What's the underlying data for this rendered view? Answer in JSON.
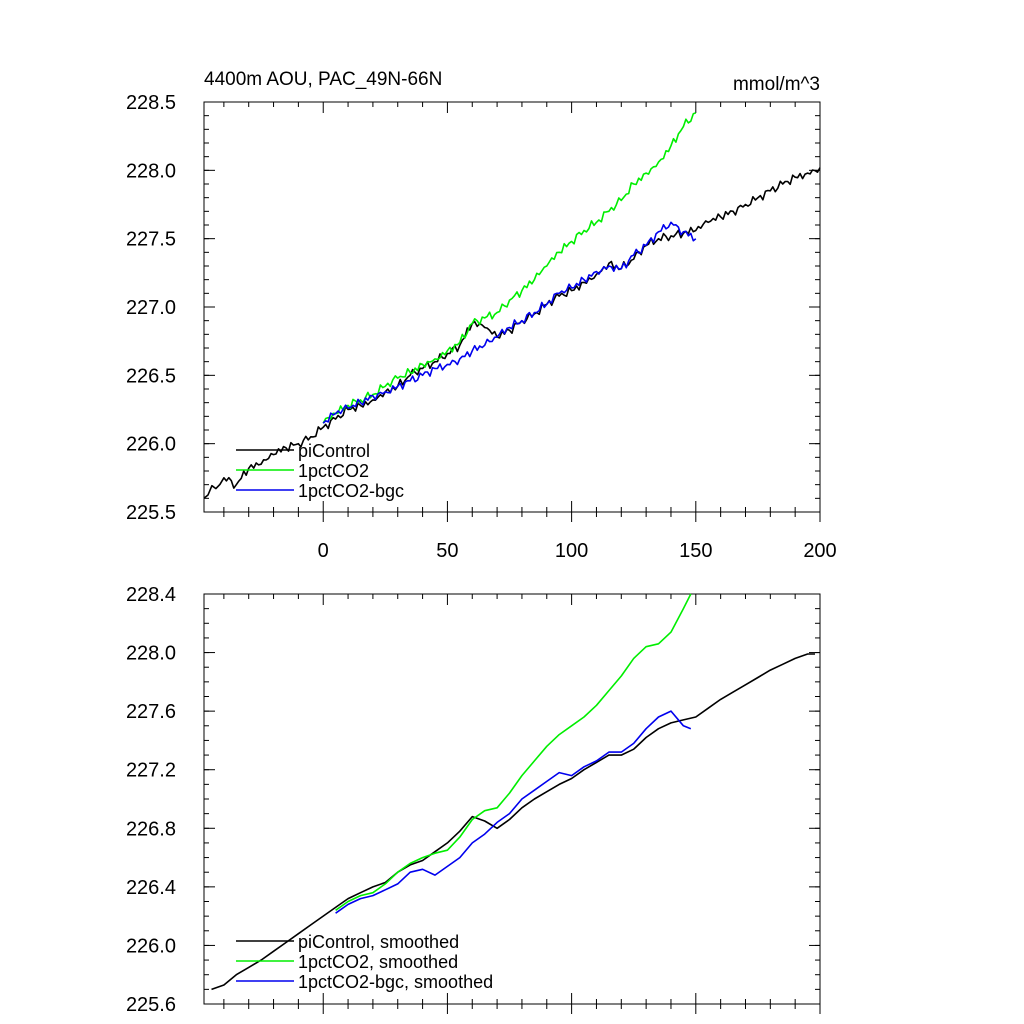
{
  "header": {
    "title": "4400m AOU, PAC_49N-66N",
    "units": "mmol/m^3"
  },
  "colors": {
    "piControl": "#000000",
    "1pctCO2": "#00ee00",
    "1pctCO2-bgc": "#0000ee"
  },
  "chart_data": [
    {
      "type": "line",
      "title": "",
      "xlabel": "",
      "ylabel": "",
      "xlim": [
        -48,
        200
      ],
      "ylim": [
        225.5,
        228.5
      ],
      "xticks": [
        0,
        50,
        100,
        150,
        200
      ],
      "xtick_labels": [
        "0",
        "50",
        "100",
        "150",
        "200"
      ],
      "yticks": [
        225.5,
        226.0,
        226.5,
        227.0,
        227.5,
        228.0,
        228.5
      ],
      "ytick_labels": [
        "225.5",
        "226.0",
        "226.5",
        "227.0",
        "227.5",
        "228.0",
        "228.5"
      ],
      "legend_position": "bottom-left",
      "series": [
        {
          "name": "piControl",
          "x": [
            -48,
            -40,
            -35,
            -30,
            -25,
            -20,
            -15,
            -10,
            -5,
            0,
            5,
            10,
            15,
            20,
            25,
            30,
            35,
            40,
            45,
            50,
            55,
            60,
            65,
            70,
            75,
            80,
            85,
            90,
            95,
            100,
            105,
            110,
            115,
            120,
            125,
            130,
            135,
            140,
            145,
            150,
            155,
            160,
            165,
            170,
            175,
            180,
            185,
            190,
            195,
            200
          ],
          "y": [
            225.6,
            225.75,
            225.7,
            225.82,
            225.85,
            225.92,
            225.97,
            226.0,
            226.05,
            226.12,
            226.18,
            226.25,
            226.28,
            226.32,
            226.38,
            226.42,
            226.5,
            226.55,
            226.6,
            226.66,
            226.72,
            226.88,
            226.85,
            226.78,
            226.83,
            226.9,
            226.95,
            227.02,
            227.08,
            227.12,
            227.18,
            227.24,
            227.32,
            227.28,
            227.35,
            227.45,
            227.5,
            227.52,
            227.54,
            227.56,
            227.62,
            227.66,
            227.7,
            227.75,
            227.8,
            227.85,
            227.9,
            227.95,
            227.98,
            228.02
          ]
        },
        {
          "name": "1pctCO2",
          "x": [
            0,
            5,
            10,
            15,
            20,
            25,
            30,
            35,
            40,
            45,
            50,
            55,
            60,
            65,
            70,
            75,
            80,
            85,
            90,
            95,
            100,
            105,
            110,
            115,
            120,
            125,
            130,
            135,
            140,
            145,
            150
          ],
          "y": [
            226.15,
            226.22,
            226.28,
            226.32,
            226.36,
            226.42,
            226.48,
            226.52,
            226.58,
            226.62,
            226.68,
            226.74,
            226.88,
            226.92,
            226.96,
            227.05,
            227.12,
            227.2,
            227.3,
            227.4,
            227.48,
            227.56,
            227.62,
            227.7,
            227.78,
            227.9,
            227.98,
            228.06,
            228.18,
            228.32,
            228.42
          ]
        },
        {
          "name": "1pctCO2-bgc",
          "x": [
            0,
            5,
            10,
            15,
            20,
            25,
            30,
            35,
            40,
            45,
            50,
            55,
            60,
            65,
            70,
            75,
            80,
            85,
            90,
            95,
            100,
            105,
            110,
            115,
            120,
            125,
            130,
            135,
            140,
            145,
            150
          ],
          "y": [
            226.15,
            226.22,
            226.26,
            226.3,
            226.35,
            226.38,
            226.42,
            226.46,
            226.5,
            226.55,
            226.58,
            226.62,
            226.68,
            226.72,
            226.78,
            226.85,
            226.9,
            226.96,
            227.02,
            227.1,
            227.14,
            227.2,
            227.26,
            227.3,
            227.28,
            227.38,
            227.45,
            227.55,
            227.62,
            227.55,
            227.5
          ]
        }
      ]
    },
    {
      "type": "line",
      "title": "",
      "xlabel": "",
      "ylabel": "",
      "xlim": [
        -48,
        200
      ],
      "ylim": [
        225.6,
        228.4
      ],
      "xticks": [
        0,
        50,
        100,
        150,
        200
      ],
      "yticks": [
        225.6,
        226.0,
        226.4,
        226.8,
        227.2,
        227.6,
        228.0,
        228.4
      ],
      "ytick_labels": [
        "225.6",
        "226.0",
        "226.4",
        "226.8",
        "227.2",
        "227.6",
        "228.0",
        "228.4"
      ],
      "legend_position": "bottom-left",
      "series": [
        {
          "name": "piControl, smoothed",
          "x": [
            -45,
            -40,
            -35,
            -30,
            -25,
            -20,
            -15,
            -10,
            -5,
            0,
            5,
            10,
            15,
            20,
            25,
            30,
            35,
            40,
            45,
            50,
            55,
            60,
            65,
            70,
            75,
            80,
            85,
            90,
            95,
            100,
            105,
            110,
            115,
            120,
            125,
            130,
            135,
            140,
            145,
            150,
            155,
            160,
            165,
            170,
            175,
            180,
            185,
            190,
            195,
            198
          ],
          "y": [
            225.7,
            225.73,
            225.8,
            225.85,
            225.9,
            225.96,
            226.02,
            226.08,
            226.14,
            226.2,
            226.26,
            226.32,
            226.36,
            226.4,
            226.43,
            226.5,
            226.55,
            226.58,
            226.64,
            226.7,
            226.78,
            226.88,
            226.85,
            226.8,
            226.86,
            226.94,
            227.0,
            227.05,
            227.1,
            227.14,
            227.2,
            227.25,
            227.3,
            227.3,
            227.34,
            227.42,
            227.48,
            227.52,
            227.54,
            227.56,
            227.62,
            227.68,
            227.73,
            227.78,
            227.83,
            227.88,
            227.92,
            227.96,
            227.99,
            227.99
          ]
        },
        {
          "name": "1pctCO2, smoothed",
          "x": [
            5,
            10,
            15,
            20,
            25,
            30,
            35,
            40,
            45,
            50,
            55,
            60,
            65,
            70,
            75,
            80,
            85,
            90,
            95,
            100,
            105,
            110,
            115,
            120,
            125,
            130,
            135,
            140,
            145,
            148
          ],
          "y": [
            226.24,
            226.3,
            226.34,
            226.36,
            226.42,
            226.5,
            226.56,
            226.6,
            226.63,
            226.65,
            226.74,
            226.86,
            226.92,
            226.94,
            227.04,
            227.16,
            227.26,
            227.36,
            227.44,
            227.5,
            227.56,
            227.64,
            227.74,
            227.84,
            227.96,
            228.04,
            228.06,
            228.14,
            228.3,
            228.4
          ]
        },
        {
          "name": "1pctCO2-bgc, smoothed",
          "x": [
            5,
            10,
            15,
            20,
            25,
            30,
            35,
            40,
            45,
            50,
            55,
            60,
            65,
            70,
            75,
            80,
            85,
            90,
            95,
            100,
            105,
            110,
            115,
            120,
            125,
            130,
            135,
            140,
            145,
            148
          ],
          "y": [
            226.22,
            226.28,
            226.32,
            226.34,
            226.38,
            226.42,
            226.5,
            226.52,
            226.48,
            226.54,
            226.6,
            226.7,
            226.76,
            226.84,
            226.9,
            227.0,
            227.06,
            227.12,
            227.18,
            227.16,
            227.22,
            227.26,
            227.32,
            227.32,
            227.38,
            227.48,
            227.56,
            227.6,
            227.5,
            227.48
          ]
        }
      ]
    }
  ]
}
